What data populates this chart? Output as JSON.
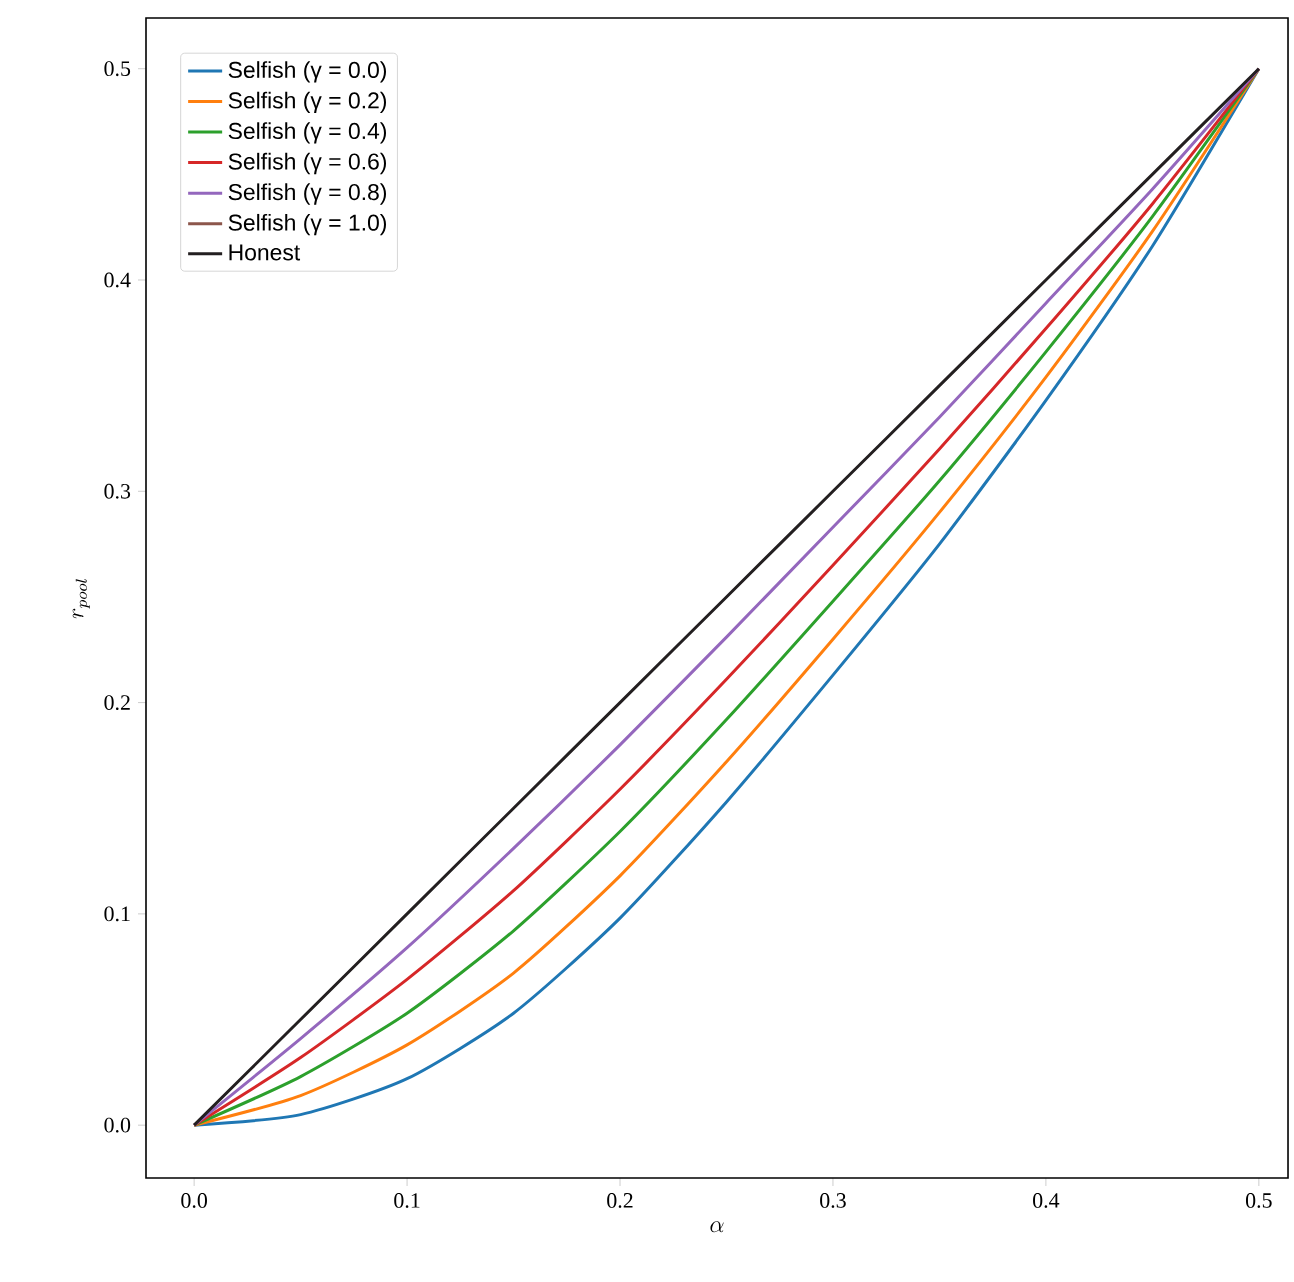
{
  "chart_data": {
    "type": "line",
    "xlabel": "\\alpha",
    "ylabel": "r_{pool}",
    "x": [
      0,
      0.05,
      0.1,
      0.15,
      0.2,
      0.25,
      0.3,
      0.35,
      0.4,
      0.45,
      0.5
    ],
    "series": [
      {
        "name": "Selfish (γ = 0.0)",
        "color": "#1f77b4",
        "values": [
          0,
          0.005,
          0.022,
          0.053,
          0.098,
          0.153,
          0.213,
          0.275,
          0.343,
          0.416,
          0.5
        ]
      },
      {
        "name": "Selfish (γ = 0.2)",
        "color": "#ff7f0e",
        "values": [
          0,
          0.014,
          0.038,
          0.072,
          0.118,
          0.172,
          0.23,
          0.29,
          0.354,
          0.423,
          0.5
        ]
      },
      {
        "name": "Selfish (γ = 0.4)",
        "color": "#2ca02c",
        "values": [
          0,
          0.023,
          0.053,
          0.092,
          0.139,
          0.192,
          0.248,
          0.305,
          0.366,
          0.43,
          0.5
        ]
      },
      {
        "name": "Selfish (γ = 0.6)",
        "color": "#d62728",
        "values": [
          0,
          0.032,
          0.069,
          0.111,
          0.159,
          0.211,
          0.265,
          0.32,
          0.377,
          0.436,
          0.5
        ]
      },
      {
        "name": "Selfish (γ = 0.8)",
        "color": "#9467bd",
        "values": [
          0,
          0.041,
          0.084,
          0.131,
          0.18,
          0.231,
          0.283,
          0.335,
          0.389,
          0.443,
          0.5
        ]
      },
      {
        "name": "Selfish (γ = 1.0)",
        "color": "#8c564b",
        "values": [
          null,
          null,
          null,
          null,
          null,
          null,
          null,
          null,
          null,
          null,
          null
        ]
      },
      {
        "name": "Honest",
        "color": "#231f20",
        "values": [
          0,
          0.05,
          0.1,
          0.15,
          0.2,
          0.25,
          0.3,
          0.35,
          0.4,
          0.45,
          0.5
        ]
      }
    ],
    "xlim": [
      -0.0226,
      0.5137
    ],
    "ylim": [
      -0.025,
      0.524
    ],
    "xticks": [
      {
        "value": 0,
        "label": "0.0"
      },
      {
        "value": 0.1,
        "label": "0.1"
      },
      {
        "value": 0.2,
        "label": "0.2"
      },
      {
        "value": 0.3,
        "label": "0.3"
      },
      {
        "value": 0.4,
        "label": "0.4"
      },
      {
        "value": 0.5,
        "label": "0.5"
      }
    ],
    "yticks": [
      {
        "value": 0,
        "label": "0.0"
      },
      {
        "value": 0.1,
        "label": "0.1"
      },
      {
        "value": 0.2,
        "label": "0.2"
      },
      {
        "value": 0.3,
        "label": "0.3"
      },
      {
        "value": 0.4,
        "label": "0.4"
      },
      {
        "value": 0.5,
        "label": "0.5"
      }
    ],
    "legend": "top left",
    "line_style": "solid"
  }
}
